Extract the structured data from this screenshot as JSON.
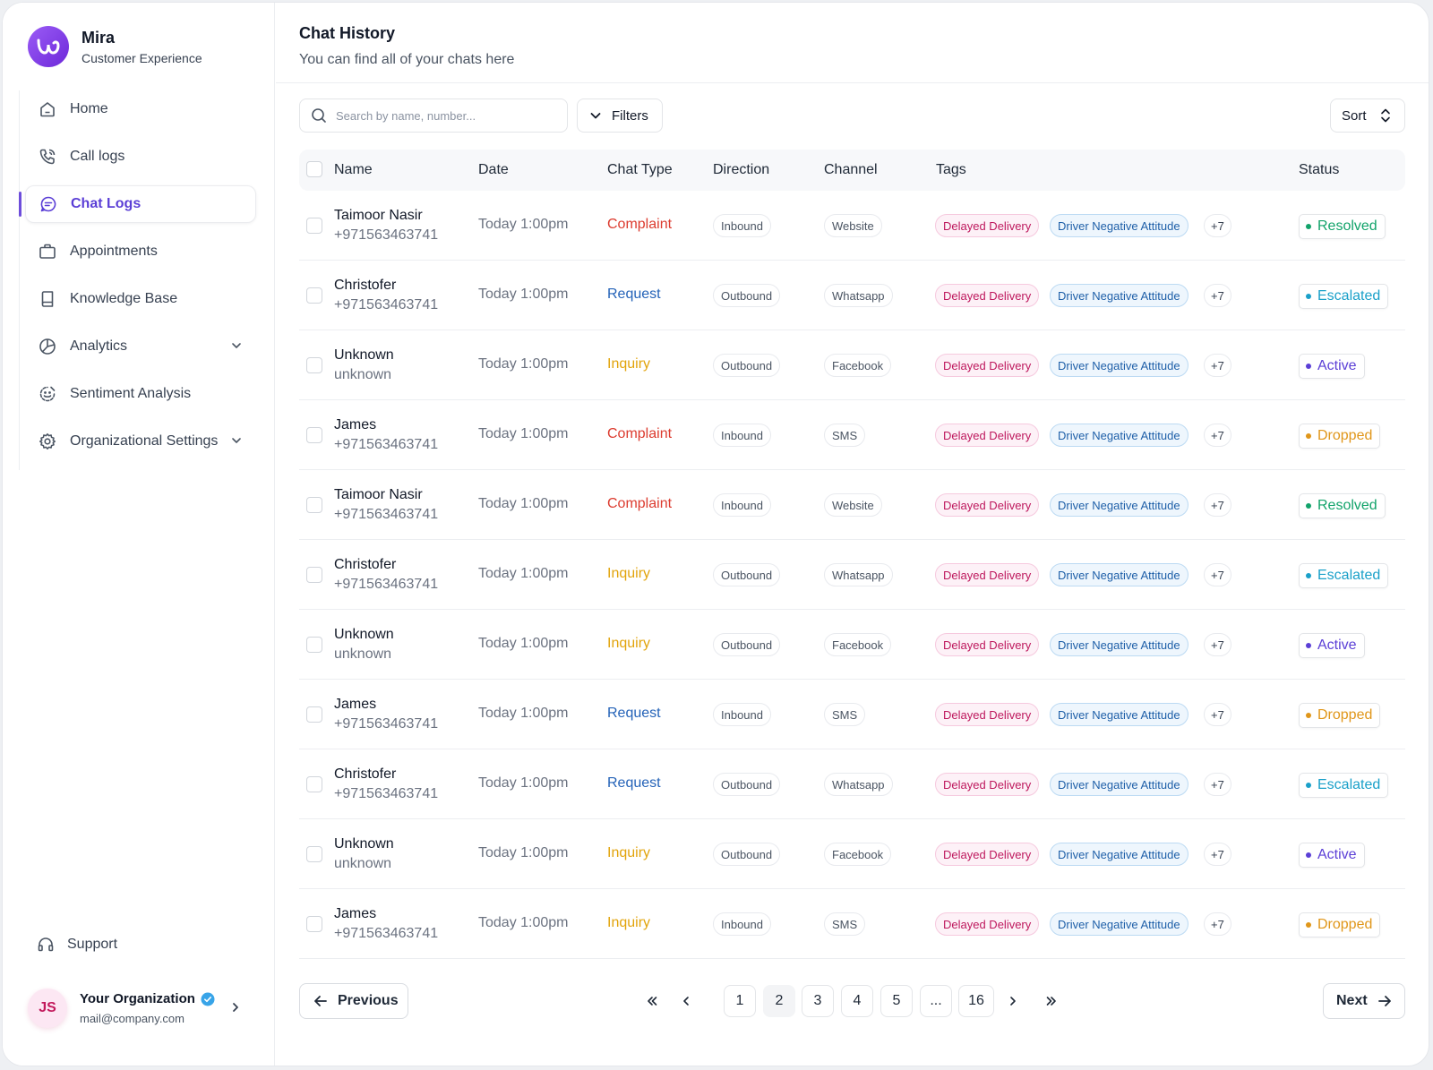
{
  "brand": {
    "name": "Mira",
    "subtitle": "Customer Experience"
  },
  "nav": [
    {
      "label": "Home",
      "icon": "home-icon"
    },
    {
      "label": "Call logs",
      "icon": "phone-icon"
    },
    {
      "label": "Chat Logs",
      "icon": "chat-icon",
      "active": true
    },
    {
      "label": "Appointments",
      "icon": "briefcase-icon"
    },
    {
      "label": "Knowledge Base",
      "icon": "book-icon"
    },
    {
      "label": "Analytics",
      "icon": "pie-chart-icon",
      "expandable": true
    },
    {
      "label": "Sentiment Analysis",
      "icon": "sentiment-icon"
    },
    {
      "label": "Organizational Settings",
      "icon": "gear-icon",
      "expandable": true
    }
  ],
  "support": {
    "label": "Support"
  },
  "org": {
    "initials": "JS",
    "name": "Your Organization",
    "email": "mail@company.com"
  },
  "header": {
    "title": "Chat History",
    "subtitle": "You can find all of your chats here"
  },
  "toolbar": {
    "search_placeholder": "Search by name, number...",
    "filters_label": "Filters",
    "sort_label": "Sort"
  },
  "columns": {
    "name": "Name",
    "date": "Date",
    "chat_type": "Chat Type",
    "direction": "Direction",
    "channel": "Channel",
    "tags": "Tags",
    "status": "Status"
  },
  "colors": {
    "Complaint": "#dc3b2f",
    "Request": "#2563b8",
    "Inquiry": "#e2a40c",
    "Resolved": "#12a36a",
    "Escalated": "#1aa0c9",
    "Active": "#5b3fd6",
    "Dropped": "#e0961a"
  },
  "rows": [
    {
      "name": "Taimoor Nasir",
      "sub": "+971563463741",
      "date": "Today 1:00pm",
      "type": "Complaint",
      "direction": "Inbound",
      "channel": "Website",
      "tag1": "Delayed Delivery",
      "tag2": "Driver Negative Attitude",
      "more": "+7",
      "status": "Resolved"
    },
    {
      "name": "Christofer",
      "sub": "+971563463741",
      "date": "Today 1:00pm",
      "type": "Request",
      "direction": "Outbound",
      "channel": "Whatsapp",
      "tag1": "Delayed Delivery",
      "tag2": "Driver Negative Attitude",
      "more": "+7",
      "status": "Escalated"
    },
    {
      "name": "Unknown",
      "sub": "unknown",
      "date": "Today 1:00pm",
      "type": "Inquiry",
      "direction": "Outbound",
      "channel": "Facebook",
      "tag1": "Delayed Delivery",
      "tag2": "Driver Negative Attitude",
      "more": "+7",
      "status": "Active"
    },
    {
      "name": "James",
      "sub": "+971563463741",
      "date": "Today 1:00pm",
      "type": "Complaint",
      "direction": "Inbound",
      "channel": "SMS",
      "tag1": "Delayed Delivery",
      "tag2": "Driver Negative Attitude",
      "more": "+7",
      "status": "Dropped"
    },
    {
      "name": "Taimoor Nasir",
      "sub": "+971563463741",
      "date": "Today 1:00pm",
      "type": "Complaint",
      "direction": "Inbound",
      "channel": "Website",
      "tag1": "Delayed Delivery",
      "tag2": "Driver Negative Attitude",
      "more": "+7",
      "status": "Resolved"
    },
    {
      "name": "Christofer",
      "sub": "+971563463741",
      "date": "Today 1:00pm",
      "type": "Inquiry",
      "direction": "Outbound",
      "channel": "Whatsapp",
      "tag1": "Delayed Delivery",
      "tag2": "Driver Negative Attitude",
      "more": "+7",
      "status": "Escalated"
    },
    {
      "name": "Unknown",
      "sub": "unknown",
      "date": "Today 1:00pm",
      "type": "Inquiry",
      "direction": "Outbound",
      "channel": "Facebook",
      "tag1": "Delayed Delivery",
      "tag2": "Driver Negative Attitude",
      "more": "+7",
      "status": "Active"
    },
    {
      "name": "James",
      "sub": "+971563463741",
      "date": "Today 1:00pm",
      "type": "Request",
      "direction": "Inbound",
      "channel": "SMS",
      "tag1": "Delayed Delivery",
      "tag2": "Driver Negative Attitude",
      "more": "+7",
      "status": "Dropped"
    },
    {
      "name": "Christofer",
      "sub": "+971563463741",
      "date": "Today 1:00pm",
      "type": "Request",
      "direction": "Outbound",
      "channel": "Whatsapp",
      "tag1": "Delayed Delivery",
      "tag2": "Driver Negative Attitude",
      "more": "+7",
      "status": "Escalated"
    },
    {
      "name": "Unknown",
      "sub": "unknown",
      "date": "Today 1:00pm",
      "type": "Inquiry",
      "direction": "Outbound",
      "channel": "Facebook",
      "tag1": "Delayed Delivery",
      "tag2": "Driver Negative Attitude",
      "more": "+7",
      "status": "Active"
    },
    {
      "name": "James",
      "sub": "+971563463741",
      "date": "Today 1:00pm",
      "type": "Inquiry",
      "direction": "Inbound",
      "channel": "SMS",
      "tag1": "Delayed Delivery",
      "tag2": "Driver Negative Attitude",
      "more": "+7",
      "status": "Dropped"
    }
  ],
  "pagination": {
    "previous_label": "Previous",
    "next_label": "Next",
    "pages": [
      "1",
      "2",
      "3",
      "4",
      "5",
      "...",
      "16"
    ],
    "current": "2"
  }
}
